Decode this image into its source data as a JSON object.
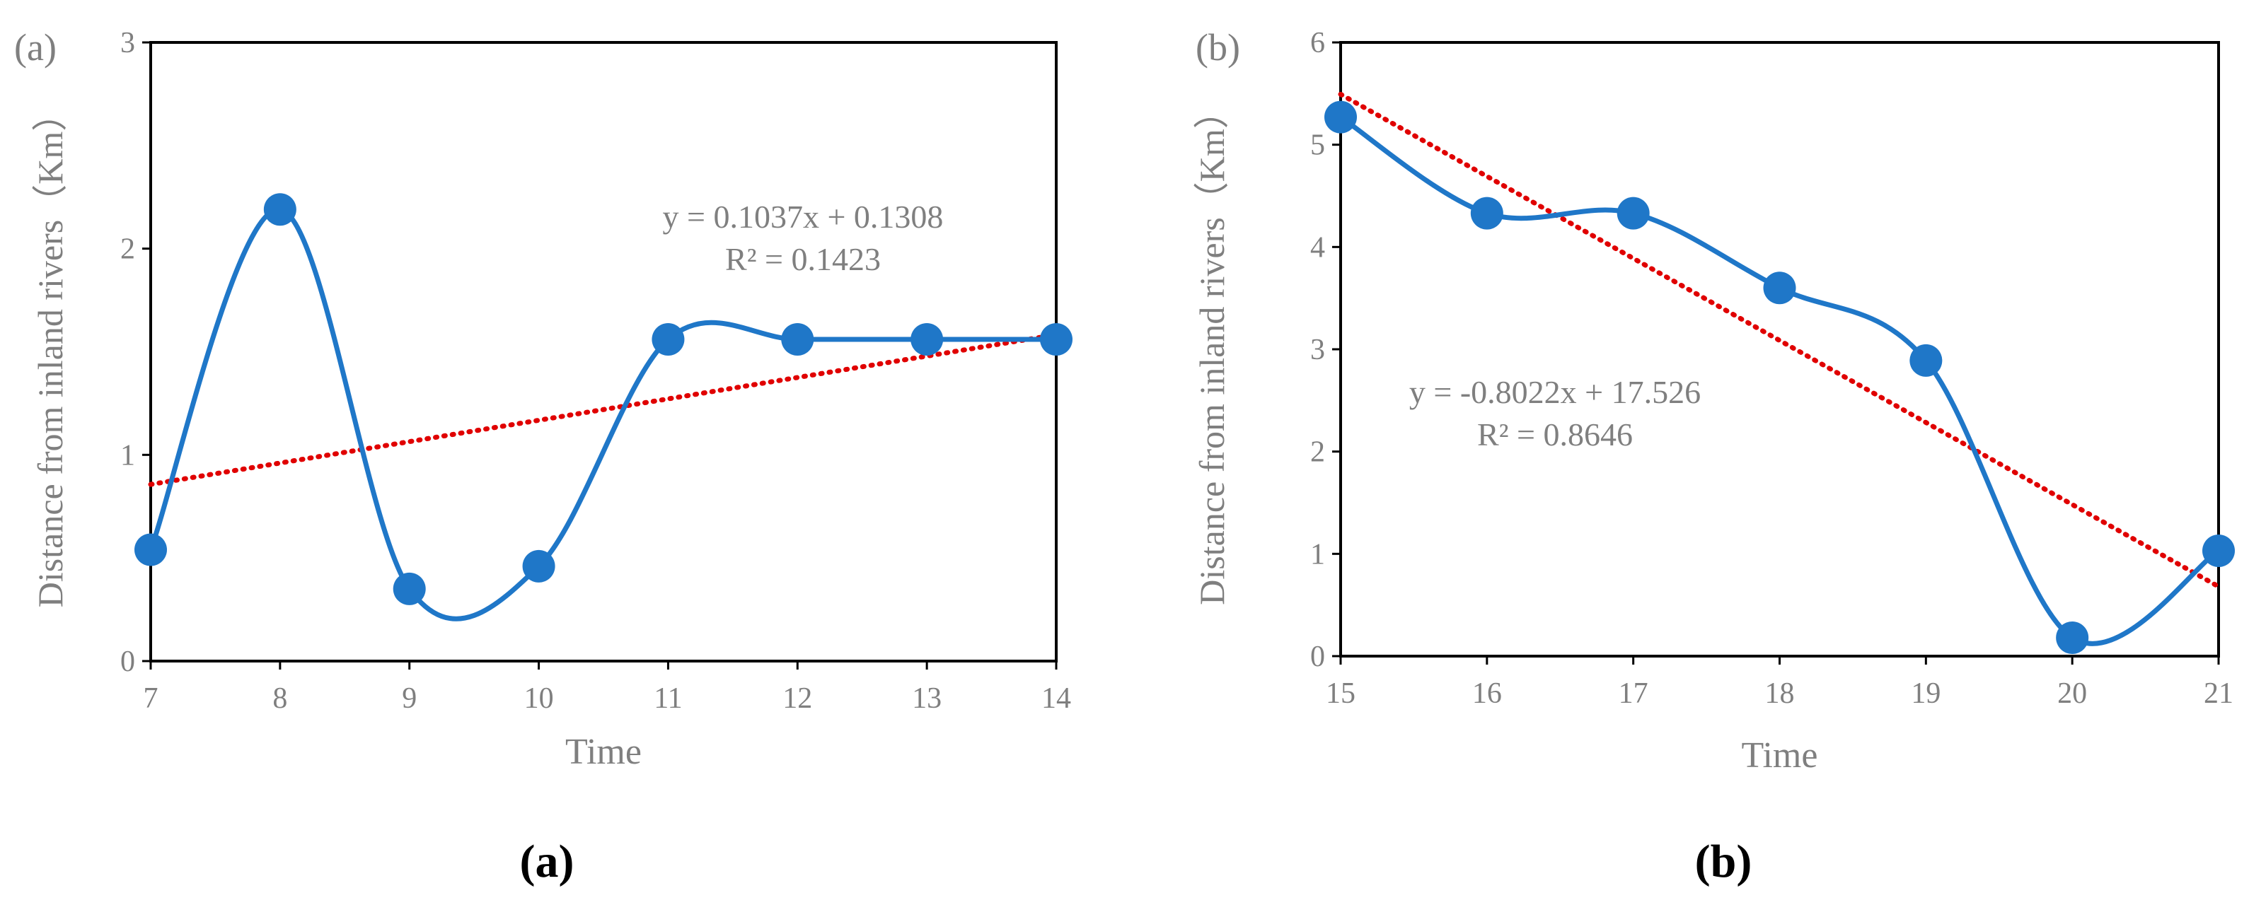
{
  "chart_data": [
    {
      "type": "line",
      "panel_label": "(a)",
      "caption": "(a)",
      "xlabel": "Time",
      "ylabel": "Distance from inland rivers（Km）",
      "xlim": [
        7,
        14
      ],
      "ylim": [
        0,
        3
      ],
      "x_ticks": [
        7,
        8,
        9,
        10,
        11,
        12,
        13,
        14
      ],
      "y_ticks": [
        0,
        1,
        2,
        3
      ],
      "grid": false,
      "series": [
        {
          "name": "Distance",
          "style": "smoothed-line-with-markers",
          "color": "#1F77C8",
          "x": [
            7,
            8,
            9,
            10,
            11,
            12,
            13,
            14
          ],
          "values": [
            0.54,
            2.19,
            0.35,
            0.46,
            1.56,
            1.56,
            1.56,
            1.56
          ]
        },
        {
          "name": "Linear trendline",
          "style": "dotted",
          "color": "#E00000",
          "slope": 0.1037,
          "intercept": 0.1308
        }
      ],
      "annotations": [
        "y = 0.1037x + 0.1308",
        "R² = 0.1423"
      ]
    },
    {
      "type": "line",
      "panel_label": "(b)",
      "caption": "(b)",
      "xlabel": "Time",
      "ylabel": "Distance from inland rivers（Km）",
      "xlim": [
        15,
        21
      ],
      "ylim": [
        0,
        6
      ],
      "x_ticks": [
        15,
        16,
        17,
        18,
        19,
        20,
        21
      ],
      "y_ticks": [
        0,
        1,
        2,
        3,
        4,
        5,
        6
      ],
      "grid": false,
      "series": [
        {
          "name": "Distance",
          "style": "smoothed-line-with-markers",
          "color": "#1F77C8",
          "x": [
            15,
            16,
            17,
            18,
            19,
            20,
            21
          ],
          "values": [
            5.27,
            4.33,
            4.33,
            3.6,
            2.89,
            0.18,
            1.03
          ]
        },
        {
          "name": "Linear trendline",
          "style": "dotted",
          "color": "#E00000",
          "slope": -0.8022,
          "intercept": 17.526
        }
      ],
      "annotations": [
        "y = -0.8022x + 17.526",
        "R² = 0.8646"
      ]
    }
  ]
}
